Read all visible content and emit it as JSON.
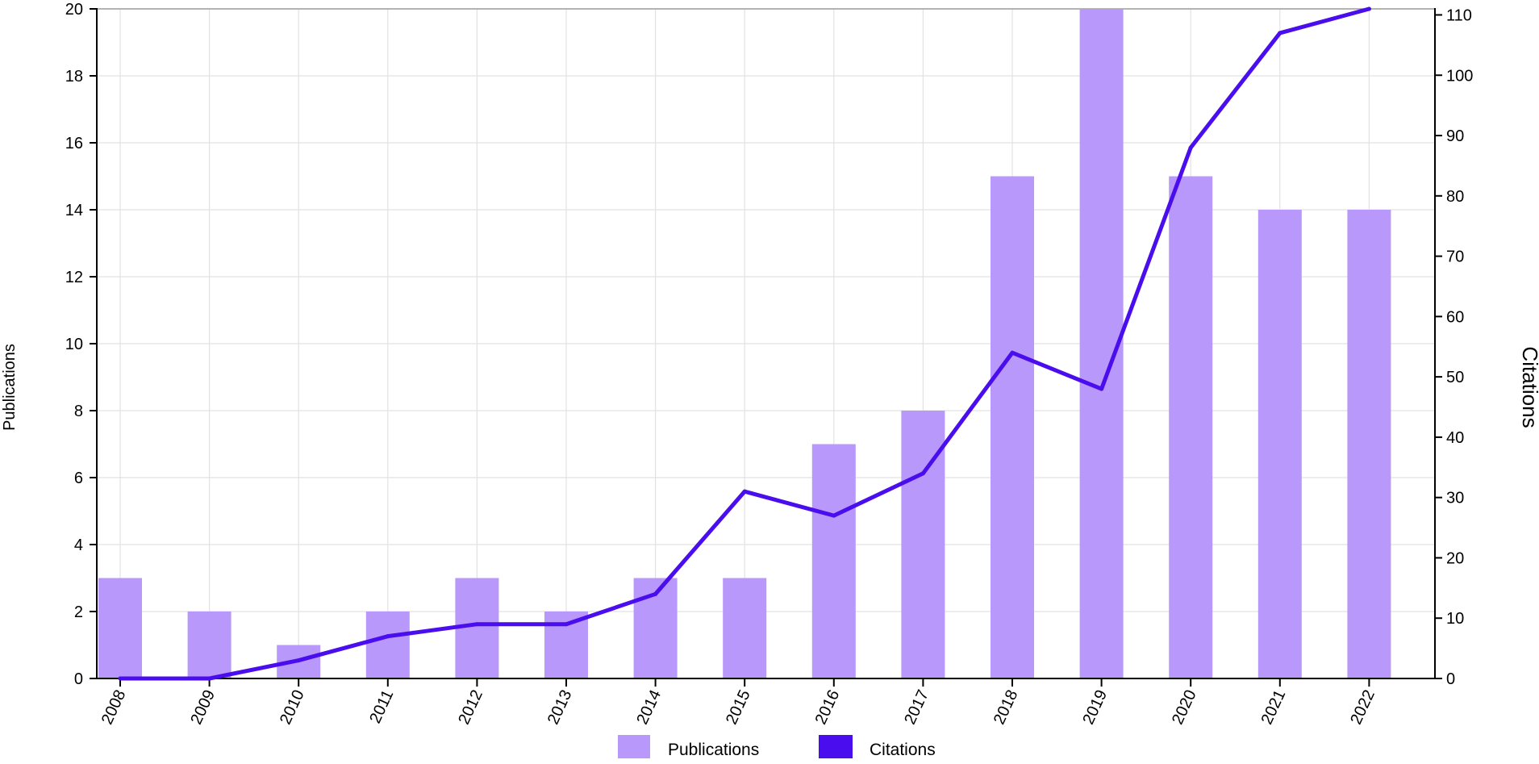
{
  "chart_data": {
    "type": "bar",
    "categories": [
      "2008",
      "2009",
      "2010",
      "2011",
      "2012",
      "2013",
      "2014",
      "2015",
      "2016",
      "2017",
      "2018",
      "2019",
      "2020",
      "2021",
      "2022"
    ],
    "series": [
      {
        "name": "Publications",
        "type": "bar",
        "axis": "left",
        "color": "#b899fb",
        "values": [
          3,
          2,
          1,
          2,
          3,
          2,
          3,
          3,
          7,
          8,
          15,
          20,
          15,
          14,
          14
        ]
      },
      {
        "name": "Citations",
        "type": "line",
        "axis": "right",
        "color": "#4a0ded",
        "values": [
          0,
          0,
          3,
          7,
          9,
          9,
          14,
          31,
          27,
          34,
          54,
          48,
          88,
          107,
          111
        ]
      }
    ],
    "title": "",
    "xlabel": "",
    "ylabel": "Publications",
    "y2label": "Citations",
    "ylim": [
      0,
      20
    ],
    "y2lim": [
      0,
      111
    ],
    "yticks": [
      0,
      2,
      4,
      6,
      8,
      10,
      12,
      14,
      16,
      18,
      20
    ],
    "y2ticks": [
      0,
      10,
      20,
      30,
      40,
      50,
      60,
      70,
      80,
      90,
      100,
      110
    ],
    "grid": true,
    "legend": {
      "placement": "bottom-center",
      "entries": [
        "Publications",
        "Citations"
      ]
    }
  }
}
